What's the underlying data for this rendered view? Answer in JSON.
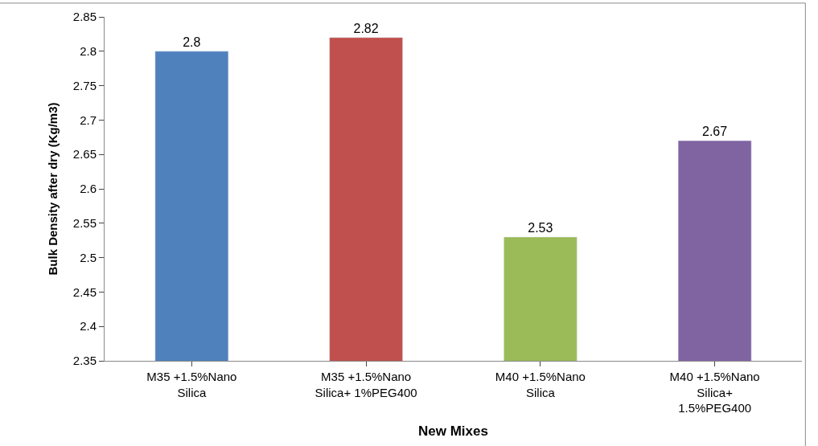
{
  "chart_data": {
    "type": "bar",
    "xlabel": "New Mixes",
    "ylabel": "Bulk Density after dry (Kg/m3)",
    "categories": [
      "M35 +1.5%Nano Silica",
      "M35 +1.5%Nano Silica+ 1%PEG400",
      "M40 +1.5%Nano Silica",
      "M40 +1.5%Nano Silica+ 1.5%PEG400"
    ],
    "values": [
      2.8,
      2.82,
      2.53,
      2.67
    ],
    "colors": [
      "#4f81bd",
      "#c0504d",
      "#9bbb59",
      "#8064a2"
    ],
    "ylim": [
      2.35,
      2.85
    ],
    "yticks": [
      2.35,
      2.4,
      2.45,
      2.5,
      2.55,
      2.6,
      2.65,
      2.7,
      2.75,
      2.8,
      2.85
    ],
    "data_labels": true
  }
}
